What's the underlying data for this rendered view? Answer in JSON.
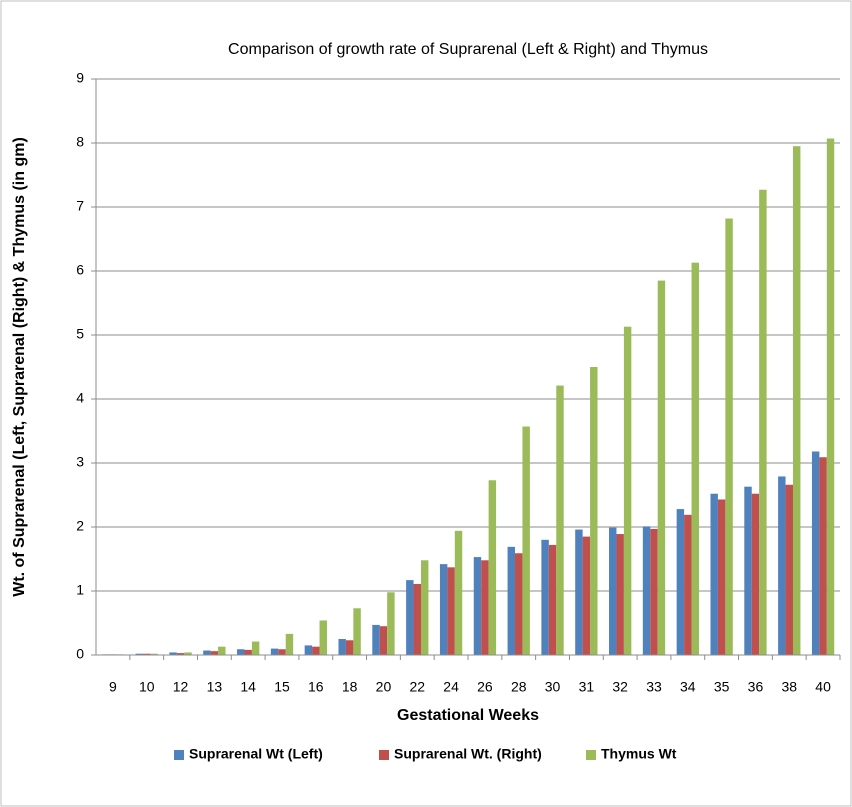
{
  "chart_data": {
    "type": "bar",
    "title": "Comparison of growth rate of Suprarenal (Left & Right) and Thymus",
    "x_label": "Gestational Weeks",
    "y_label": "Wt. of Suprarenal (Left, Suprarenal (Right) & Thymus (in gm)",
    "categories": [
      "9",
      "10",
      "12",
      "13",
      "14",
      "15",
      "16",
      "18",
      "20",
      "22",
      "24",
      "26",
      "28",
      "30",
      "31",
      "32",
      "33",
      "34",
      "35",
      "36",
      "38",
      "40"
    ],
    "series": [
      {
        "name": "Suprarenal Wt (Left)",
        "color": "#4f81bd",
        "values": [
          0.01,
          0.02,
          0.04,
          0.07,
          0.09,
          0.1,
          0.15,
          0.25,
          0.47,
          1.17,
          1.42,
          1.53,
          1.69,
          1.8,
          1.96,
          1.99,
          2.01,
          2.28,
          2.52,
          2.63,
          2.79,
          3.18
        ]
      },
      {
        "name": "Suprarenal Wt. (Right)",
        "color": "#c0504d",
        "values": [
          0.01,
          0.02,
          0.03,
          0.06,
          0.08,
          0.09,
          0.13,
          0.23,
          0.45,
          1.11,
          1.37,
          1.48,
          1.59,
          1.72,
          1.85,
          1.89,
          1.97,
          2.19,
          2.43,
          2.52,
          2.66,
          3.09
        ]
      },
      {
        "name": "Thymus Wt",
        "color": "#9bbb59",
        "values": [
          0.01,
          0.02,
          0.04,
          0.13,
          0.21,
          0.33,
          0.54,
          0.73,
          0.98,
          1.48,
          1.94,
          2.73,
          3.57,
          4.21,
          4.5,
          5.13,
          5.85,
          6.13,
          6.82,
          7.27,
          7.95,
          8.07
        ]
      }
    ],
    "ylim": [
      0,
      9
    ],
    "yticks": [
      0,
      1,
      2,
      3,
      4,
      5,
      6,
      7,
      8,
      9
    ],
    "grid": true,
    "legend": "bottom"
  }
}
